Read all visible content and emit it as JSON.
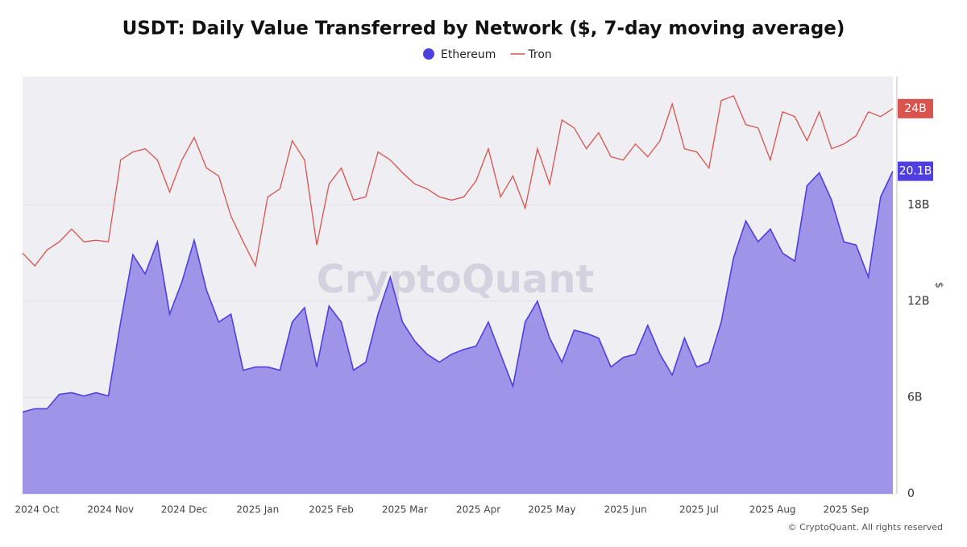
{
  "chart_data": {
    "type": "line",
    "title": "USDT: Daily Value Transferred by Network ($, 7-day moving average)",
    "y_label": "$",
    "watermark": "CryptoQuant",
    "footer": "© CryptoQuant. All rights reserved",
    "categories": [
      "2024 Oct",
      null,
      null,
      null,
      null,
      null,
      "2024 Nov",
      null,
      null,
      null,
      null,
      null,
      "2024 Dec",
      null,
      null,
      null,
      null,
      null,
      "2025 Jan",
      null,
      null,
      null,
      null,
      null,
      "2025 Feb",
      null,
      null,
      null,
      null,
      null,
      "2025 Mar",
      null,
      null,
      null,
      null,
      null,
      "2025 Apr",
      null,
      null,
      null,
      null,
      null,
      "2025 May",
      null,
      null,
      null,
      null,
      null,
      "2025 Jun",
      null,
      null,
      null,
      null,
      null,
      "2025 Jul",
      null,
      null,
      null,
      null,
      null,
      "2025 Aug",
      null,
      null,
      null,
      null,
      null,
      "2025 Sep",
      null,
      null,
      null,
      null,
      null
    ],
    "ylim": [
      0,
      26
    ],
    "yticks": [
      0,
      {
        "value": 6,
        "label": "6B"
      },
      {
        "value": 12,
        "label": "12B"
      },
      {
        "value": 18,
        "label": "18B"
      }
    ],
    "grid": true,
    "series": [
      {
        "name": "Ethereum",
        "style": "area",
        "color": "#4f3fe0",
        "fill": "#a094e8",
        "values": [
          5.1,
          5.3,
          5.3,
          6.2,
          6.3,
          6.1,
          6.3,
          6.1,
          10.7,
          14.9,
          13.7,
          15.7,
          11.2,
          13.2,
          15.8,
          12.7,
          10.7,
          11.2,
          7.7,
          7.9,
          7.9,
          7.7,
          10.7,
          11.6,
          7.9,
          11.7,
          10.7,
          7.7,
          8.2,
          11.2,
          13.5,
          10.7,
          9.5,
          8.7,
          8.2,
          8.7,
          9.0,
          9.2,
          10.7,
          8.7,
          6.7,
          10.7,
          12.0,
          9.7,
          8.2,
          10.2,
          10.0,
          9.7,
          7.9,
          8.5,
          8.7,
          10.5,
          8.7,
          7.4,
          9.7,
          7.9,
          8.2,
          10.7,
          14.7,
          17.0,
          15.7,
          16.5,
          15.0,
          14.5,
          19.2,
          20.0,
          18.3,
          15.7,
          15.5,
          13.5,
          18.5,
          20.1
        ],
        "value_labels": [
          null,
          null,
          null,
          null,
          null,
          null,
          null,
          null,
          null,
          null,
          null,
          null,
          null,
          null,
          null,
          null,
          null,
          null,
          null,
          null,
          null,
          null,
          null,
          null,
          null,
          null,
          null,
          null,
          null,
          null,
          null,
          null,
          null,
          null,
          null,
          null,
          null,
          null,
          null,
          null,
          null,
          null,
          null,
          null,
          null,
          null,
          null,
          null,
          null,
          null,
          null,
          null,
          null,
          null,
          null,
          null,
          null,
          null,
          null,
          null,
          null,
          null,
          null,
          null,
          null,
          null,
          null,
          null,
          null,
          null,
          null,
          "20.1B"
        ]
      },
      {
        "name": "Tron",
        "style": "line",
        "color": "#d9534f",
        "values": [
          15.0,
          14.2,
          15.2,
          15.7,
          16.5,
          15.7,
          15.8,
          15.7,
          20.8,
          21.3,
          21.5,
          20.8,
          18.8,
          20.8,
          22.2,
          20.3,
          19.8,
          17.3,
          15.7,
          14.2,
          18.5,
          19.0,
          22.0,
          20.8,
          15.5,
          19.3,
          20.3,
          18.3,
          18.5,
          21.3,
          20.8,
          20.0,
          19.3,
          19.0,
          18.5,
          18.3,
          18.5,
          19.5,
          21.5,
          18.5,
          19.8,
          17.8,
          21.5,
          19.3,
          23.3,
          22.8,
          21.5,
          22.5,
          21.0,
          20.8,
          21.8,
          21.0,
          22.0,
          24.3,
          21.5,
          21.3,
          20.3,
          24.5,
          24.8,
          23.0,
          22.8,
          20.8,
          23.8,
          23.5,
          22.0,
          23.8,
          21.5,
          21.8,
          22.3,
          23.8,
          23.5,
          24
        ],
        "value_labels": [
          null,
          null,
          null,
          null,
          null,
          null,
          null,
          null,
          null,
          null,
          null,
          null,
          null,
          null,
          null,
          null,
          null,
          null,
          null,
          null,
          null,
          null,
          null,
          null,
          null,
          null,
          null,
          null,
          null,
          null,
          null,
          null,
          null,
          null,
          null,
          null,
          null,
          null,
          null,
          null,
          null,
          null,
          null,
          null,
          null,
          null,
          null,
          null,
          null,
          null,
          null,
          null,
          null,
          null,
          null,
          null,
          null,
          null,
          null,
          null,
          null,
          null,
          null,
          null,
          null,
          null,
          null,
          null,
          null,
          null,
          null,
          "24B"
        ]
      }
    ]
  }
}
